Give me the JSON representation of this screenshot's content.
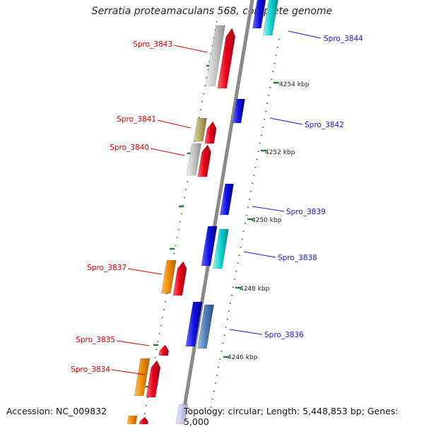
{
  "title": "Serratia proteamaculans 568, complete genome",
  "accession": "Accession: NC_009832",
  "topology": "Topology: circular; Length: 5,448,853 bp; Genes: 5,000",
  "colors": {
    "backbone": "#8a8a8a",
    "left_label": "#d40000",
    "right_label": "#1a1ad0",
    "tick": "#2e7d2e",
    "gene_red": "#e8001c",
    "gene_grey": "#bdbdbd",
    "gene_olive": "#b5a860",
    "gene_orange": "#f08c00",
    "gene_blue": "#1010e0",
    "gene_cyan": "#10d0d0",
    "gene_steel": "#4f7fb8",
    "gene_lavender": "#c8c8f0"
  },
  "scale_labels": [
    {
      "id": "kbp-4254",
      "text": "4254 kbp"
    },
    {
      "id": "kbp-4252",
      "text": "4252 kbp"
    },
    {
      "id": "kbp-4250",
      "text": "4250 kbp"
    },
    {
      "id": "kbp-4248",
      "text": "4248 kbp"
    },
    {
      "id": "kbp-4246",
      "text": "4246 kbp"
    }
  ],
  "gene_labels": [
    {
      "id": "spro-3844",
      "text": "Spro_3844",
      "side": "right"
    },
    {
      "id": "spro-3843",
      "text": "Spro_3843",
      "side": "left"
    },
    {
      "id": "spro-3842",
      "text": "Spro_3842",
      "side": "right"
    },
    {
      "id": "spro-3841",
      "text": "Spro_3841",
      "side": "left"
    },
    {
      "id": "spro-3840",
      "text": "Spro_3840",
      "side": "left"
    },
    {
      "id": "spro-3839",
      "text": "Spro_3839",
      "side": "right"
    },
    {
      "id": "spro-3838",
      "text": "Spro_3838",
      "side": "right"
    },
    {
      "id": "spro-3837",
      "text": "Spro_3837",
      "side": "left"
    },
    {
      "id": "spro-3836",
      "text": "Spro_3836",
      "side": "right"
    },
    {
      "id": "spro-3835",
      "text": "Spro_3835",
      "side": "left"
    },
    {
      "id": "spro-3834",
      "text": "Spro_3834",
      "side": "left"
    }
  ]
}
